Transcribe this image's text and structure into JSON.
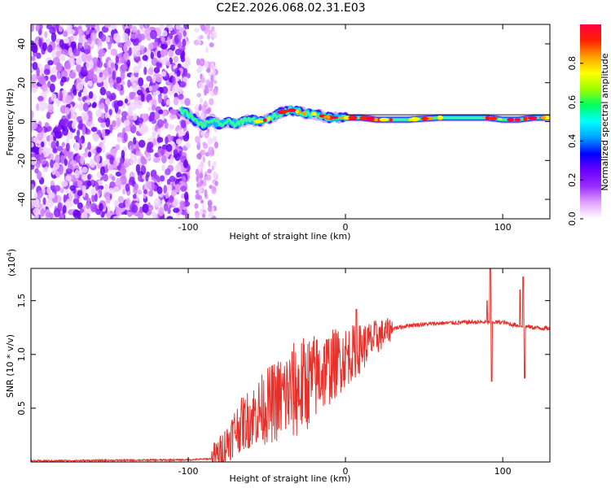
{
  "chart_data": [
    {
      "type": "heatmap",
      "title": "C2E2.2026.068.02.31.E03",
      "xlabel": "Height of straight line (km)",
      "ylabel": "Frequency (Hz)",
      "xlim": [
        -200,
        130
      ],
      "ylim": [
        -50,
        50
      ],
      "xticks": [
        -100,
        0,
        100
      ],
      "yticks": [
        -40,
        -20,
        0,
        20,
        40
      ],
      "colorbar": {
        "label": "Normalized spectral amplitude",
        "range": [
          0,
          1
        ],
        "ticks": [
          "0.0",
          "0.2",
          "0.4",
          "0.6",
          "0.8"
        ],
        "colors": [
          "#ffffff",
          "#e3a3ff",
          "#9a2cff",
          "#6a00ff",
          "#0000ff",
          "#00a0ff",
          "#00ffff",
          "#00ff60",
          "#9cff00",
          "#ffff00",
          "#ffa000",
          "#ff2000",
          "#ff0040"
        ]
      },
      "ridge": {
        "x": [
          -105,
          -100,
          -95,
          -90,
          -85,
          -80,
          -75,
          -70,
          -65,
          -60,
          -55,
          -50,
          -45,
          -40,
          -35,
          -30,
          -25,
          -20,
          -15,
          -10,
          -5,
          0,
          10,
          20,
          40,
          60,
          80,
          90,
          100,
          110,
          120,
          130
        ],
        "freq": [
          6,
          4,
          0,
          -2,
          1,
          -2,
          0,
          -1,
          0,
          1,
          0,
          1,
          3,
          5,
          6,
          5,
          4,
          4,
          3,
          2,
          2,
          2,
          2,
          1,
          1,
          2,
          2,
          2,
          1,
          1,
          2,
          2
        ]
      },
      "noise_region": {
        "x_start": -200,
        "x_end": -100,
        "extra_x_start": -95,
        "extra_x_end": -82
      }
    },
    {
      "type": "line",
      "title": "",
      "xlabel": "Height of straight line (km)",
      "ylabel": "SNR (10 * v/v)",
      "multiplier_base": "(x10",
      "multiplier_exp": "4",
      "multiplier_close": ")",
      "xlim": [
        -200,
        130
      ],
      "ylim": [
        0,
        1.8
      ],
      "xticks": [
        -100,
        0,
        100
      ],
      "yticks": [
        0.5,
        1.0,
        1.5
      ],
      "ytick_labels": [
        "0.5",
        "1.0",
        "1.5"
      ],
      "color": "#e8302a",
      "envelope": {
        "x": [
          -200,
          -100,
          -85,
          -80,
          -75,
          -70,
          -60,
          -50,
          -40,
          -30,
          -20,
          -10,
          0,
          10,
          20,
          30,
          40,
          60,
          80,
          90,
          92,
          95,
          100,
          105,
          110,
          115,
          120,
          130
        ],
        "y": [
          0.01,
          0.02,
          0.03,
          0.08,
          0.18,
          0.3,
          0.42,
          0.52,
          0.6,
          0.68,
          0.78,
          0.88,
          0.98,
          1.06,
          1.16,
          1.24,
          1.27,
          1.29,
          1.3,
          1.3,
          1.3,
          1.3,
          1.3,
          1.28,
          1.27,
          1.26,
          1.25,
          1.24
        ]
      },
      "spikes": [
        {
          "x": 7,
          "y": 1.42
        },
        {
          "x": 92,
          "y": 1.85
        },
        {
          "x": 93,
          "y": 0.75
        },
        {
          "x": 90,
          "y": 1.5
        },
        {
          "x": 113,
          "y": 1.72
        },
        {
          "x": 114,
          "y": 0.78
        },
        {
          "x": 111,
          "y": 1.6
        }
      ]
    }
  ]
}
